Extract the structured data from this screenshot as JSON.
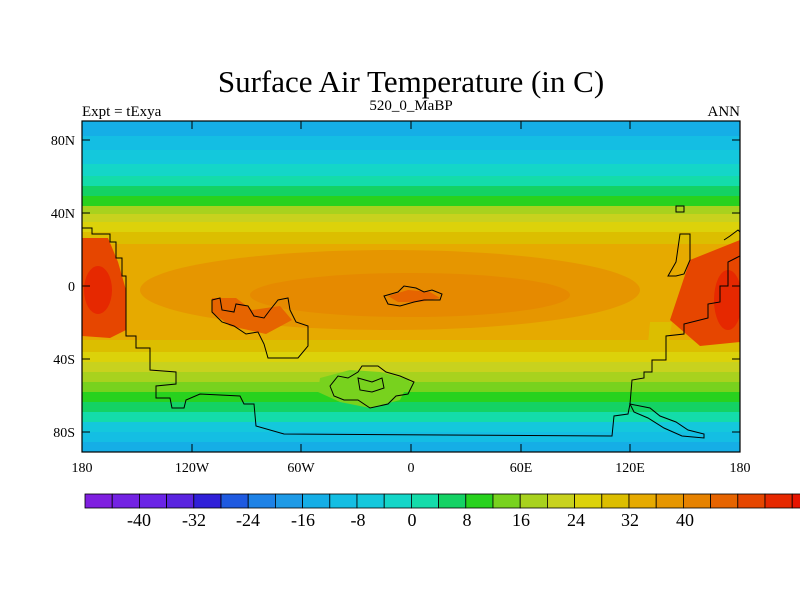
{
  "title": "Surface Air Temperature (in C)",
  "left_label": "Expt = tExya",
  "center_label": "520_0_MaBP",
  "right_label": "ANN",
  "map": {
    "lat_ticks": [
      "80N",
      "40N",
      "0",
      "40S",
      "80S"
    ],
    "lon_ticks": [
      "180",
      "120W",
      "60W",
      "0",
      "60E",
      "120E",
      "180"
    ]
  },
  "colorbar": {
    "labels": [
      "-40",
      "-32",
      "-24",
      "-16",
      "-8",
      "0",
      "8",
      "16",
      "24",
      "32",
      "40"
    ],
    "colors": [
      "#7f1fe0",
      "#7322e3",
      "#6a24e6",
      "#5a24e0",
      "#3020d8",
      "#1f5ae0",
      "#1e82e6",
      "#1e9ae6",
      "#15aee6",
      "#14bee3",
      "#14c8dc",
      "#14d6c8",
      "#14dcaa",
      "#14d264",
      "#28d21e",
      "#78d21e",
      "#a8d21e",
      "#c8d21e",
      "#dcd20a",
      "#dcbe00",
      "#e6aa00",
      "#e69600",
      "#e68200",
      "#e66400",
      "#e64600",
      "#e62800",
      "#e61400"
    ]
  }
}
